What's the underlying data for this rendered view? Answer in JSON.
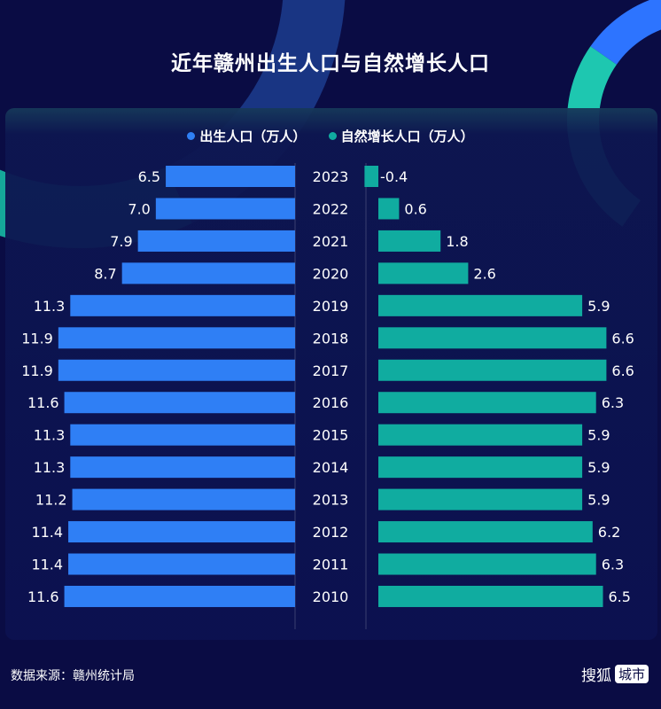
{
  "chart_data": {
    "type": "bar",
    "title": "近年赣州出生人口与自然增长人口",
    "categories": [
      "2023",
      "2022",
      "2021",
      "2020",
      "2019",
      "2018",
      "2017",
      "2016",
      "2015",
      "2014",
      "2013",
      "2012",
      "2011",
      "2010"
    ],
    "series": [
      {
        "name": "出生人口（万人）",
        "color": "#2f7ff5",
        "values": [
          6.5,
          7.0,
          7.9,
          8.7,
          11.3,
          11.9,
          11.9,
          11.6,
          11.3,
          11.3,
          11.2,
          11.4,
          11.4,
          11.6
        ]
      },
      {
        "name": "自然增长人口（万人）",
        "color": "#10aca0",
        "values": [
          -0.4,
          0.6,
          1.8,
          2.6,
          5.9,
          6.6,
          6.6,
          6.3,
          5.9,
          5.9,
          5.9,
          6.2,
          6.3,
          6.5
        ]
      }
    ],
    "legend_position": "top-center",
    "layout": "butterfly"
  },
  "footer": {
    "source": "数据来源：赣州统计局",
    "brand": "搜狐",
    "brand_tag": "城市"
  }
}
